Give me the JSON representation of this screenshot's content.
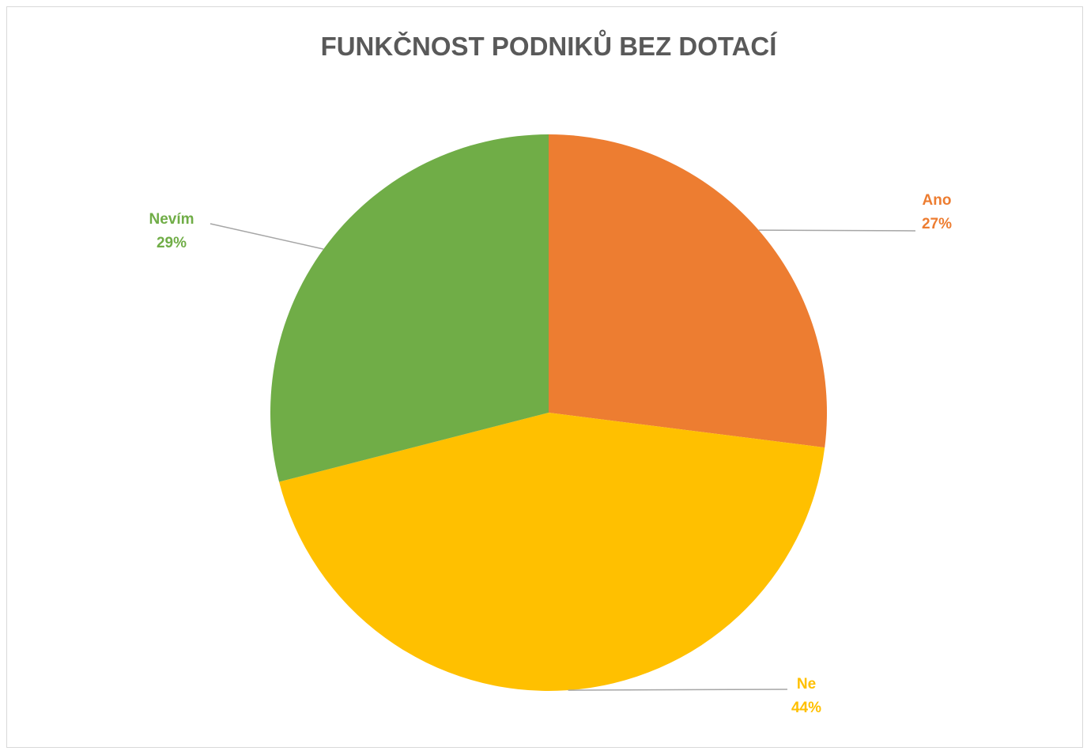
{
  "chart_data": {
    "type": "pie",
    "title": "FUNKČNOST PODNIKŮ BEZ DOTACÍ",
    "legend": "none",
    "start_angle_deg": 0,
    "direction": "clockwise",
    "slices": [
      {
        "label": "Ano",
        "value": 27,
        "value_label": "27%",
        "color": "#ED7D31"
      },
      {
        "label": "Ne",
        "value": 44,
        "value_label": "44%",
        "color": "#FFC000"
      },
      {
        "label": "Nevím",
        "value": 29,
        "value_label": "29%",
        "color": "#70AD47"
      }
    ]
  }
}
